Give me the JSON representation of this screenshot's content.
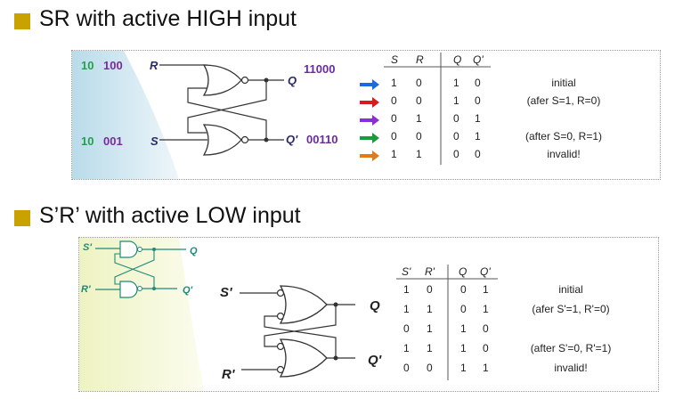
{
  "section1": {
    "heading": "SR with active HIGH input",
    "inputs": {
      "r_bits": [
        "10",
        "100"
      ],
      "r_label": "R",
      "s_bits": [
        "10",
        "001"
      ],
      "s_label": "S"
    },
    "outputs": {
      "q_label": "Q",
      "q_bits": "11000",
      "qn_label": "Q'",
      "qn_bits": "00110"
    },
    "table": {
      "headers": [
        "S",
        "R",
        "Q",
        "Q'"
      ],
      "rows": [
        {
          "cells": [
            "1",
            "0",
            "1",
            "0"
          ],
          "note": "initial",
          "arrow": "#1a6be0"
        },
        {
          "cells": [
            "0",
            "0",
            "1",
            "0"
          ],
          "note": "(afer S=1, R=0)",
          "arrow": "#d81a1a"
        },
        {
          "cells": [
            "0",
            "1",
            "0",
            "1"
          ],
          "note": "",
          "arrow": "#8a2fd8"
        },
        {
          "cells": [
            "0",
            "0",
            "0",
            "1"
          ],
          "note": "(after S=0, R=1)",
          "arrow": "#1a9a3a"
        },
        {
          "cells": [
            "1",
            "1",
            "0",
            "0"
          ],
          "note": "invalid!",
          "arrow": "#e07a1a"
        }
      ]
    }
  },
  "section2": {
    "heading": "S’R’ with active LOW input",
    "small_circuit": {
      "s_label": "S'",
      "r_label": "R'",
      "q_label": "Q",
      "qn_label": "Q'"
    },
    "circuit": {
      "s_label": "S'",
      "r_label": "R'",
      "q_label": "Q",
      "qn_label": "Q'"
    },
    "table": {
      "headers": [
        "S'",
        "R'",
        "Q",
        "Q'"
      ],
      "rows": [
        {
          "cells": [
            "1",
            "0",
            "0",
            "1"
          ],
          "note": "initial"
        },
        {
          "cells": [
            "1",
            "1",
            "0",
            "1"
          ],
          "note": "(afer S'=1, R'=0)"
        },
        {
          "cells": [
            "0",
            "1",
            "1",
            "0"
          ],
          "note": ""
        },
        {
          "cells": [
            "1",
            "1",
            "1",
            "0"
          ],
          "note": "(after S'=0, R'=1)"
        },
        {
          "cells": [
            "0",
            "0",
            "1",
            "1"
          ],
          "note": "invalid!"
        }
      ]
    }
  }
}
